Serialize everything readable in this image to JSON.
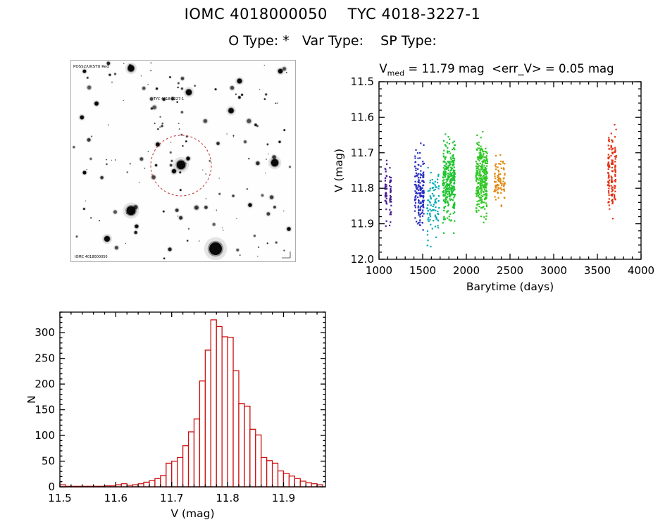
{
  "page": {
    "title": "IOMC 4018000050    TYC 4018-3227-1",
    "subtitle": "O Type: *   Var Type:    SP Type:"
  },
  "finding_chart": {
    "corner_label": "POSS2/UKSTU Red",
    "target_label": "TYC 4018-3227-1",
    "footer_label": "IOMC 4018000050",
    "circle_color": "#c03030"
  },
  "light_curve_header": {
    "var": "V",
    "sub": "med",
    "rest": " = 11.79 mag  <err_V> = 0.05 mag"
  },
  "chart_data": [
    {
      "type": "scatter",
      "name": "light-curve",
      "title": "V_med = 11.79 mag <err_V> = 0.05 mag",
      "v_med_mag": 11.79,
      "err_v_mag": 0.05,
      "xlabel": "Barytime (days)",
      "ylabel": "V (mag)",
      "xlim": [
        1000,
        4000
      ],
      "ylim": [
        11.5,
        12.0
      ],
      "y_axis_direction": "inverted-magnitude-brighter-up",
      "x_major_ticks": [
        1000,
        1500,
        2000,
        2500,
        3000,
        3500,
        4000
      ],
      "x_minor_step": 100,
      "y_major_ticks": [
        11.5,
        11.6,
        11.7,
        11.8,
        11.9,
        12.0
      ],
      "y_minor_step": 0.02,
      "clusters": [
        {
          "name": "epoch-1",
          "color": "#4a2090",
          "x_range": [
            1080,
            1130
          ],
          "columns": 2,
          "v_mean": 11.805,
          "v_sd": 0.042,
          "v_min": 11.72,
          "v_max": 11.93,
          "n": 75
        },
        {
          "name": "epoch-2",
          "color": "#2a2fc0",
          "x_range": [
            1420,
            1505
          ],
          "columns": 4,
          "v_mean": 11.805,
          "v_sd": 0.055,
          "v_min": 11.64,
          "v_max": 11.96,
          "n": 170
        },
        {
          "name": "epoch-3",
          "color": "#00aab4",
          "x_range": [
            1560,
            1680
          ],
          "columns": 5,
          "v_mean": 11.845,
          "v_sd": 0.05,
          "v_min": 11.74,
          "v_max": 11.97,
          "n": 90
        },
        {
          "name": "epoch-4",
          "color": "#1fc42e",
          "x_range": [
            1740,
            1860
          ],
          "columns": 6,
          "v_mean": 11.78,
          "v_sd": 0.055,
          "v_min": 11.62,
          "v_max": 11.94,
          "n": 300
        },
        {
          "name": "epoch-5",
          "color": "#2fc824",
          "x_range": [
            2120,
            2230
          ],
          "columns": 6,
          "v_mean": 11.775,
          "v_sd": 0.05,
          "v_min": 11.64,
          "v_max": 11.93,
          "n": 300
        },
        {
          "name": "epoch-6",
          "color": "#e08a12",
          "x_range": [
            2330,
            2430
          ],
          "columns": 4,
          "v_mean": 11.78,
          "v_sd": 0.035,
          "v_min": 11.69,
          "v_max": 11.88,
          "n": 90
        },
        {
          "name": "epoch-7",
          "color": "#e03414",
          "x_range": [
            3630,
            3705
          ],
          "columns": 3,
          "v_mean": 11.76,
          "v_sd": 0.055,
          "v_min": 11.62,
          "v_max": 11.92,
          "n": 140
        }
      ]
    },
    {
      "type": "bar",
      "name": "v-histogram",
      "xlabel": "V (mag)",
      "ylabel": "N",
      "xlim": [
        11.5,
        11.975
      ],
      "ylim": [
        0,
        340
      ],
      "bar_color": "#cc1010",
      "bin_start": 11.5,
      "bin_width": 0.01,
      "counts": [
        4,
        1,
        1,
        1,
        1,
        1,
        1,
        1,
        2,
        2,
        4,
        6,
        3,
        4,
        6,
        9,
        12,
        16,
        22,
        46,
        50,
        57,
        80,
        107,
        132,
        206,
        266,
        325,
        312,
        292,
        291,
        226,
        162,
        157,
        112,
        101,
        57,
        51,
        46,
        31,
        26,
        21,
        16,
        11,
        8,
        6,
        4
      ],
      "x_major_ticks": [
        11.5,
        11.6,
        11.7,
        11.8,
        11.9
      ],
      "x_minor_step": 0.02,
      "y_major_ticks": [
        0,
        50,
        100,
        150,
        200,
        250,
        300
      ],
      "y_minor_step": 10
    }
  ]
}
